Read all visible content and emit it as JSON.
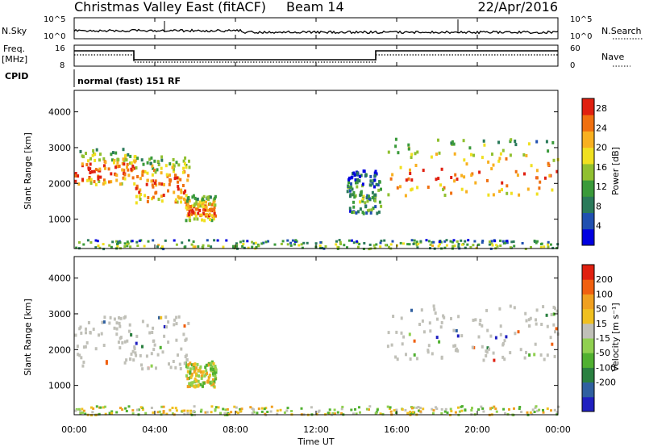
{
  "header": {
    "title": "Christmas Valley East (fitACF)",
    "beam": "Beam 14",
    "date": "22/Apr/2016"
  },
  "panels": {
    "nsky": {
      "label": "N.Sky",
      "right_label": "N.Search",
      "ticks": [
        "10^5",
        "10^0"
      ]
    },
    "freq": {
      "label_line1": "Freq.",
      "label_line2": "[MHz]",
      "left_ticks": [
        "16",
        "8"
      ],
      "right_label": "Nave",
      "right_ticks": [
        "60",
        "0"
      ]
    },
    "cpid": {
      "label": "CPID",
      "value": "normal (fast) 151 RF"
    }
  },
  "chart_data": [
    {
      "type": "heatmap",
      "name": "power",
      "ylabel": "Slant Range [km]",
      "ylim": [
        180,
        4600
      ],
      "yticks": [
        1000,
        2000,
        3000,
        4000
      ],
      "xlim": [
        "00:00",
        "24:00"
      ],
      "colorbar": {
        "label": "Power [dB]",
        "ticks": [
          "4",
          "8",
          "12",
          "16",
          "20",
          "24",
          "28"
        ],
        "range": [
          0,
          30
        ],
        "colors": [
          "#0000e0",
          "#2050b0",
          "#2a7a5a",
          "#3a9a3a",
          "#90c030",
          "#f0e020",
          "#f8b020",
          "#f07010",
          "#e02010"
        ]
      },
      "echo_regions": [
        {
          "t_start": "00:00",
          "t_end": "03:00",
          "range_low": 2000,
          "range_high": 3000,
          "peak_power_db": 28
        },
        {
          "t_start": "03:00",
          "t_end": "05:40",
          "range_low": 1500,
          "range_high": 2800,
          "peak_power_db": 28
        },
        {
          "t_start": "05:30",
          "t_end": "07:00",
          "range_low": 1000,
          "range_high": 1700,
          "peak_power_db": 28
        },
        {
          "t_start": "13:30",
          "t_end": "15:10",
          "range_low": 1200,
          "range_high": 2400,
          "peak_power_db": 12
        },
        {
          "t_start": "15:30",
          "t_end": "23:59",
          "range_low": 1700,
          "range_high": 3300,
          "peak_power_db": 28
        },
        {
          "t_start": "00:00",
          "t_end": "23:59",
          "range_low": 200,
          "range_high": 450,
          "peak_power_db": 16
        }
      ]
    },
    {
      "type": "heatmap",
      "name": "velocity",
      "ylabel": "Slant Range [km]",
      "ylim": [
        180,
        4600
      ],
      "yticks": [
        1000,
        2000,
        3000,
        4000
      ],
      "xlabel": "Time UT",
      "xticks": [
        "00:00",
        "04:00",
        "08:00",
        "12:00",
        "16:00",
        "20:00",
        "00:00"
      ],
      "colorbar": {
        "label": "Velocity [m s⁻¹]",
        "ticks": [
          "200",
          "100",
          "50",
          "15",
          "-15",
          "-50",
          "-100",
          "-200"
        ],
        "colors": [
          "#2020c0",
          "#3060a0",
          "#2a8040",
          "#50b030",
          "#90d050",
          "#c0c0b8",
          "#f0c020",
          "#f0a020",
          "#f06010",
          "#e02010"
        ]
      },
      "echo_regions": [
        {
          "t_start": "00:00",
          "t_end": "05:40",
          "range_low": 1500,
          "range_high": 3000,
          "velocity": "ground scatter (-15 to 15)"
        },
        {
          "t_start": "05:30",
          "t_end": "07:00",
          "range_low": 1000,
          "range_high": 1700,
          "velocity": "-50 to 50"
        },
        {
          "t_start": "15:30",
          "t_end": "23:59",
          "range_low": 1700,
          "range_high": 3300,
          "velocity": "ground scatter (-15 to 15)"
        },
        {
          "t_start": "00:00",
          "t_end": "23:59",
          "range_low": 200,
          "range_high": 450,
          "velocity": "-50 to 15"
        }
      ]
    }
  ]
}
